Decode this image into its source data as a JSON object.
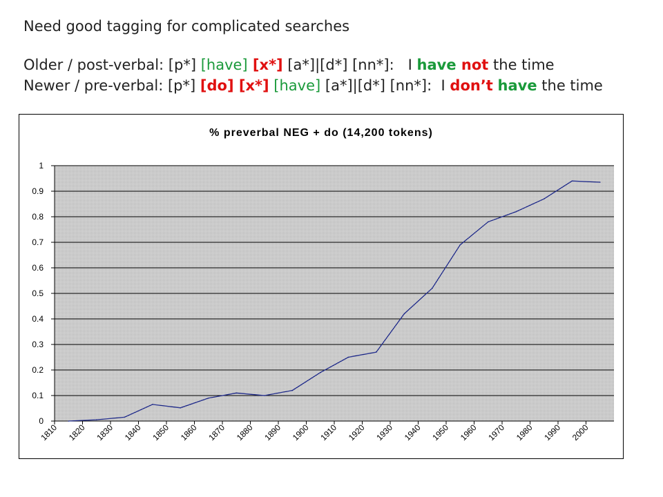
{
  "slide": {
    "title": "Need good tagging for complicated searches",
    "older": {
      "label": "Older / post-verbal: [p*] ",
      "have1": "[have]",
      "x": " [x*]",
      "rest": " [a*]|[d*] [nn*]:   I ",
      "have2": "have",
      "not": " not",
      "tail": " the time"
    },
    "newer": {
      "label": "Newer / pre-verbal: [p*] ",
      "do": "[do] [x*]",
      "sp": " ",
      "have1": "[have]",
      "rest": " [a*]|[d*] [nn*]:  I ",
      "dont": "don’t",
      "sp2": " ",
      "have2": "have",
      "tail": " the time"
    }
  },
  "colors": {
    "line": "#1f2a8a",
    "plot_bg": "#cfcfcf",
    "green": "#1a9a3a",
    "red": "#e01010"
  },
  "chart_data": {
    "type": "line",
    "title": "% preverbal NEG + do  (14,200 tokens)",
    "xlabel": "",
    "ylabel": "",
    "x_ticks": [
      "1810",
      "1820",
      "1830",
      "1840",
      "1850",
      "1860",
      "1870",
      "1880",
      "1890",
      "1900",
      "1910",
      "1920",
      "1930",
      "1940",
      "1950",
      "1960",
      "1970",
      "1980",
      "1990",
      "2000"
    ],
    "y_ticks": [
      "0",
      "0.1",
      "0.2",
      "0.3",
      "0.4",
      "0.5",
      "0.6",
      "0.7",
      "0.8",
      "0.9",
      "1"
    ],
    "xlim": [
      1810,
      2010
    ],
    "ylim": [
      0,
      1
    ],
    "grid": true,
    "series": [
      {
        "x": [
          1815,
          1825,
          1835,
          1845,
          1855,
          1865,
          1875,
          1885,
          1895,
          1905,
          1915,
          1925,
          1935,
          1945,
          1955,
          1965,
          1975,
          1985,
          1995,
          2005
        ],
        "values": [
          0.0,
          0.005,
          0.015,
          0.065,
          0.052,
          0.09,
          0.11,
          0.1,
          0.12,
          0.19,
          0.25,
          0.27,
          0.42,
          0.52,
          0.69,
          0.78,
          0.82,
          0.87,
          0.94,
          0.935
        ]
      }
    ]
  }
}
